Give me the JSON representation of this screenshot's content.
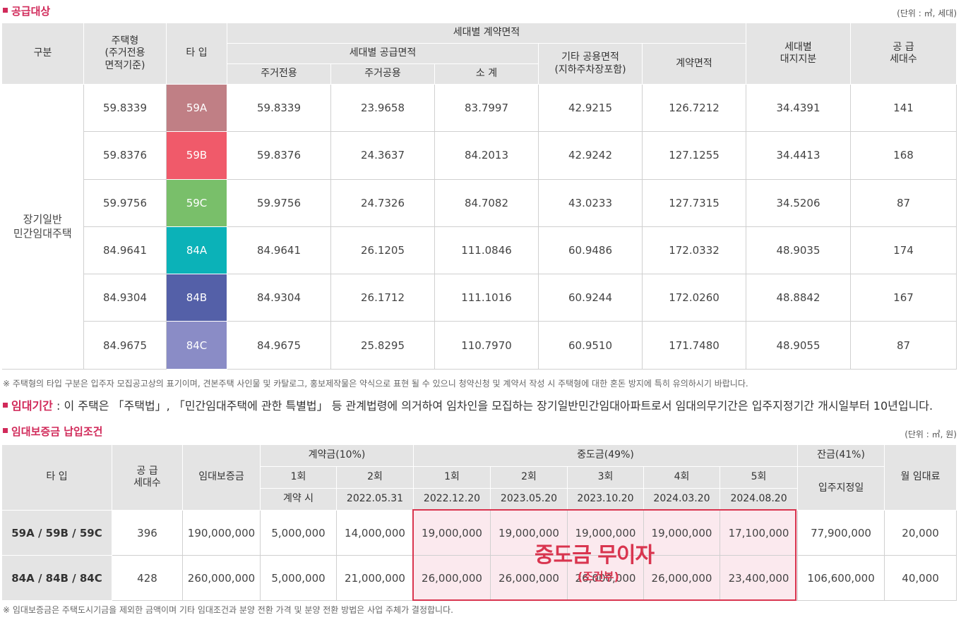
{
  "supply": {
    "title": "공급대상",
    "unit": "(단위 : ㎡, 세대)",
    "headers": {
      "category": "구분",
      "housing_type": "주택형\n(주거전용\n면적기준)",
      "type": "타 입",
      "contract_area": "세대별 계약면적",
      "supply_area": "세대별 공급면적",
      "exclusive": "주거전용",
      "common": "주거공용",
      "subtotal": "소 계",
      "other_common": "기타 공용면적\n(지하주차장포함)",
      "contract_total": "계약면적",
      "land_share": "세대별\n대지지분",
      "units": "공 급\n세대수"
    },
    "category_label": "장기일반\n민간임대주택",
    "rows": [
      {
        "housing_type": "59.8339",
        "type": "59A",
        "color": "#c07f85",
        "exclusive": "59.8339",
        "common": "23.9658",
        "subtotal": "83.7997",
        "other_common": "42.9215",
        "contract_total": "126.7212",
        "land_share": "34.4391",
        "units": "141"
      },
      {
        "housing_type": "59.8376",
        "type": "59B",
        "color": "#f05a6a",
        "exclusive": "59.8376",
        "common": "24.3637",
        "subtotal": "84.2013",
        "other_common": "42.9242",
        "contract_total": "127.1255",
        "land_share": "34.4413",
        "units": "168"
      },
      {
        "housing_type": "59.9756",
        "type": "59C",
        "color": "#79bf6a",
        "exclusive": "59.9756",
        "common": "24.7326",
        "subtotal": "84.7082",
        "other_common": "43.0233",
        "contract_total": "127.7315",
        "land_share": "34.5206",
        "units": "87"
      },
      {
        "housing_type": "84.9641",
        "type": "84A",
        "color": "#0bb2b8",
        "exclusive": "84.9641",
        "common": "26.1205",
        "subtotal": "111.0846",
        "other_common": "60.9486",
        "contract_total": "172.0332",
        "land_share": "48.9035",
        "units": "174"
      },
      {
        "housing_type": "84.9304",
        "type": "84B",
        "color": "#5460a8",
        "exclusive": "84.9304",
        "common": "26.1712",
        "subtotal": "111.1016",
        "other_common": "60.9244",
        "contract_total": "172.0260",
        "land_share": "48.8842",
        "units": "167"
      },
      {
        "housing_type": "84.9675",
        "type": "84C",
        "color": "#8a8cc6",
        "exclusive": "84.9675",
        "common": "25.8295",
        "subtotal": "110.7970",
        "other_common": "60.9510",
        "contract_total": "171.7480",
        "land_share": "48.9055",
        "units": "87"
      }
    ],
    "note": "※ 주택형의 타입 구분은 입주자 모집공고상의 표기이며, 견본주택 사인물 및 카탈로그, 홍보제작물은 약식으로 표현 될 수 있으니 청약신청 및 계약서 작성 시 주택형에 대한 혼돈 방지에 특히 유의하시기 바랍니다."
  },
  "lease_period": {
    "label": "임대기간",
    "text": " : 이 주택은 「주택법」, 「민간임대주택에 관한 특별법」 등 관계법령에 의거하여 임차인을 모집하는 장기일반민간임대아파트로서 임대의무기간은 입주지정기간 개시일부터 10년입니다."
  },
  "deposit": {
    "title": "임대보증금 납입조건",
    "unit": "(단위 : ㎡, 원)",
    "headers": {
      "type": "타 입",
      "units": "공 급\n세대수",
      "deposit": "임대보증금",
      "down_payment": "계약금(10%)",
      "middle_payment": "중도금(49%)",
      "balance": "잔금(41%)",
      "monthly_rent": "월 임대료",
      "rounds": [
        "1회",
        "2회",
        "1회",
        "2회",
        "3회",
        "4회",
        "5회"
      ],
      "dates": [
        "계약 시",
        "2022.05.31",
        "2022.12.20",
        "2023.05.20",
        "2023.10.20",
        "2024.03.20",
        "2024.08.20"
      ],
      "move_in": "입주지정일"
    },
    "rows": [
      {
        "type": "59A / 59B / 59C",
        "units": "396",
        "deposit": "190,000,000",
        "down1": "5,000,000",
        "down2": "14,000,000",
        "mid": [
          "19,000,000",
          "19,000,000",
          "19,000,000",
          "19,000,000",
          "17,100,000"
        ],
        "balance": "77,900,000",
        "rent": "20,000"
      },
      {
        "type": "84A / 84B / 84C",
        "units": "428",
        "deposit": "260,000,000",
        "down1": "5,000,000",
        "down2": "21,000,000",
        "mid": [
          "26,000,000",
          "26,000,000",
          "26,000,000",
          "26,000,000",
          "23,400,000"
        ],
        "balance": "106,600,000",
        "rent": "40,000"
      }
    ],
    "highlight_main": "중도금 무이자",
    "highlight_sub": "(조건부)",
    "note": "※ 임대보증금은 주택도시기금을 제외한 금액이며 기타 임대조건과 분양 전환 가격 및 분양 전환 방법은 사업 주체가 결정합니다."
  },
  "colors": {
    "accent": "#d12a5a",
    "header_bg": "#e4e4e4",
    "highlight_bg": "#fbe9ee",
    "highlight_border": "#d9354f"
  }
}
